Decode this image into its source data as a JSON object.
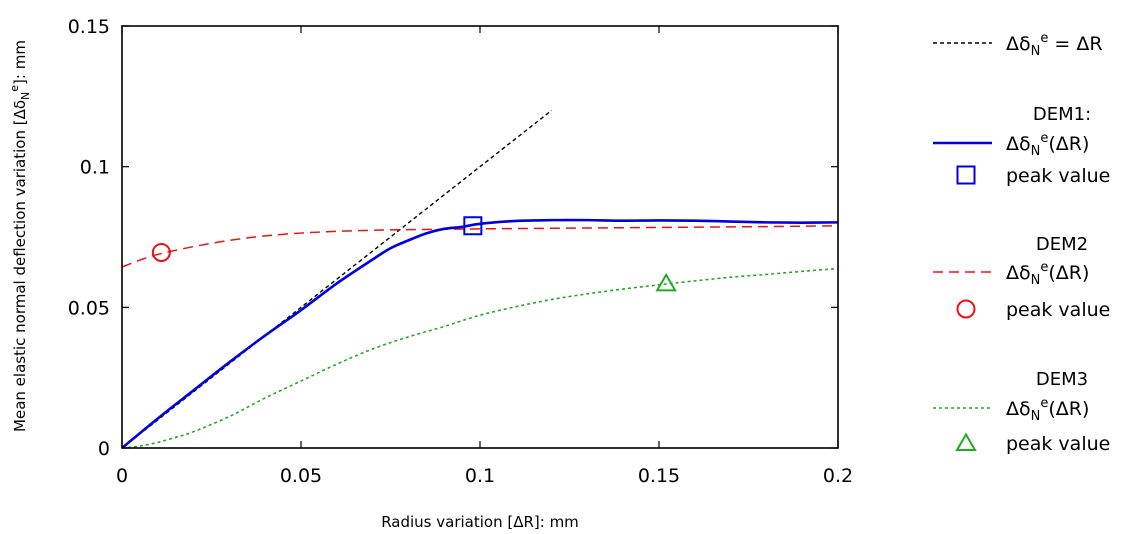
{
  "chart_data": {
    "type": "line",
    "title": "",
    "xlabel": "Radius variation [ΔR]: mm",
    "ylabel": "Mean elastic normal deflection variation [Δδ",
    "ylabel_sub": "N",
    "ylabel_sup": "e",
    "ylabel_tail": "]: mm",
    "xlim": [
      0,
      0.2
    ],
    "ylim": [
      0,
      0.15
    ],
    "xticks": [
      0,
      0.05,
      0.1,
      0.15,
      0.2
    ],
    "xtick_labels": [
      "0",
      "0.05",
      "0.1",
      "0.15",
      "0.2"
    ],
    "yticks": [
      0,
      0.05,
      0.1,
      0.15
    ],
    "ytick_labels": [
      "0",
      "0.05",
      "0.1",
      "0.15"
    ],
    "grid": false,
    "legend_position": "right",
    "reference_line": {
      "label": "Δδ_N^e = ΔR",
      "color": "#000000",
      "style": "dotted",
      "x": [
        0,
        0.12
      ],
      "y": [
        0,
        0.12
      ]
    },
    "series": [
      {
        "name": "DEM1",
        "line_label": "Δδ_N^e(ΔR)",
        "marker_label": "peak value",
        "color": "#0000e0",
        "style": "solid",
        "marker": "square",
        "peak": [
          0.098,
          0.079
        ],
        "x": [
          0,
          0.01,
          0.02,
          0.03,
          0.04,
          0.05,
          0.06,
          0.07,
          0.075,
          0.08,
          0.085,
          0.09,
          0.095,
          0.1,
          0.11,
          0.12,
          0.13,
          0.14,
          0.15,
          0.16,
          0.17,
          0.18,
          0.19,
          0.2
        ],
        "y": [
          0,
          0.0105,
          0.0205,
          0.0305,
          0.04,
          0.049,
          0.0585,
          0.067,
          0.071,
          0.0738,
          0.0763,
          0.0779,
          0.0786,
          0.0797,
          0.0807,
          0.081,
          0.081,
          0.0808,
          0.0809,
          0.0808,
          0.0805,
          0.0802,
          0.0801,
          0.0802
        ]
      },
      {
        "name": "DEM2",
        "line_label": "Δδ_N^e(ΔR)",
        "marker_label": "peak value",
        "color": "#ee1111",
        "style": "dashed",
        "marker": "circle",
        "peak": [
          0.011,
          0.0695
        ],
        "x": [
          0,
          0.005,
          0.01,
          0.02,
          0.03,
          0.04,
          0.05,
          0.06,
          0.07,
          0.08,
          0.1,
          0.12,
          0.14,
          0.16,
          0.18,
          0.2
        ],
        "y": [
          0.0643,
          0.0668,
          0.0688,
          0.0716,
          0.0738,
          0.0754,
          0.0764,
          0.077,
          0.0774,
          0.0776,
          0.0779,
          0.0781,
          0.0783,
          0.0785,
          0.0787,
          0.079
        ]
      },
      {
        "name": "DEM3",
        "line_label": "Δδ_N^e(ΔR)",
        "marker_label": "peak value",
        "color": "#22aa22",
        "style": "dotted",
        "marker": "triangle",
        "peak": [
          0.152,
          0.0585
        ],
        "x": [
          0,
          0.005,
          0.01,
          0.015,
          0.02,
          0.03,
          0.04,
          0.05,
          0.06,
          0.07,
          0.08,
          0.09,
          0.1,
          0.11,
          0.12,
          0.13,
          0.14,
          0.15,
          0.16,
          0.17,
          0.18,
          0.19,
          0.2
        ],
        "y": [
          0,
          0.0007,
          0.002,
          0.0038,
          0.0058,
          0.0112,
          0.0178,
          0.0238,
          0.0298,
          0.0352,
          0.0395,
          0.0432,
          0.0472,
          0.0502,
          0.0528,
          0.0548,
          0.0565,
          0.058,
          0.0594,
          0.0607,
          0.0617,
          0.0628,
          0.0638
        ]
      }
    ]
  }
}
